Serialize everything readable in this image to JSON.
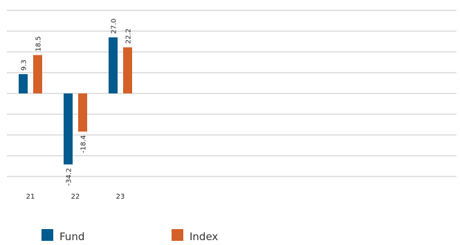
{
  "chart_data": {
    "type": "bar",
    "categories": [
      "21",
      "22",
      "23"
    ],
    "series": [
      {
        "name": "Fund",
        "values": [
          9.3,
          -34.2,
          27.0
        ],
        "labels": [
          "9.3",
          "-34.2",
          "27.0"
        ],
        "color": "#005b8e"
      },
      {
        "name": "Index",
        "values": [
          18.5,
          -18.4,
          22.2
        ],
        "labels": [
          "18.5",
          "-18.4",
          "22.2"
        ],
        "color": "#d4612a"
      }
    ],
    "ylim": [
      -40,
      40
    ],
    "grid": true,
    "legend_position": "bottom-left",
    "title": "",
    "xlabel": "",
    "ylabel": ""
  }
}
